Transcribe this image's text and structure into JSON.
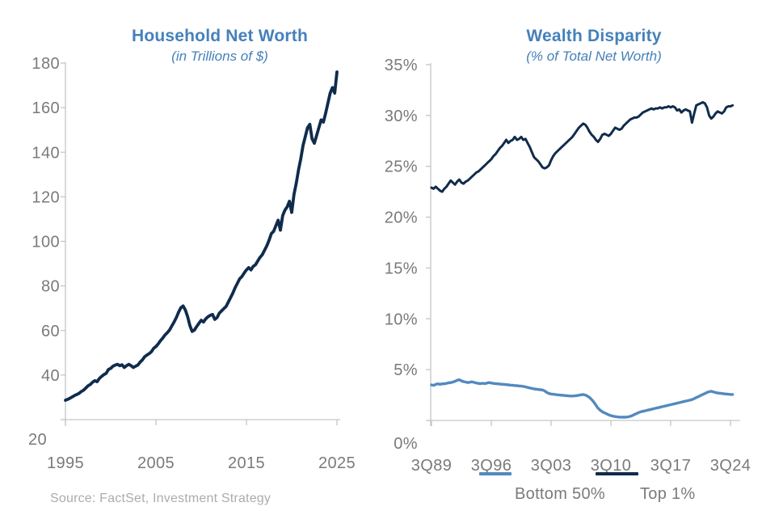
{
  "page": {
    "background": "#ffffff"
  },
  "source_note": "Source: FactSet, Investment Strategy",
  "colors": {
    "title_blue": "#4581BA",
    "navy": "#102C4C",
    "light_blue": "#5289BF",
    "axis_line": "#C3C6C9",
    "tick_label": "#7A7A7C",
    "source_text": "#ACACAE"
  },
  "chart_data": [
    {
      "type": "line",
      "title": "Household Net Worth",
      "subtitle": "(in Trillions of $)",
      "x_start": 1995,
      "x_step": 0.25,
      "x_ticks": [
        1995,
        2005,
        2015,
        2025
      ],
      "x_tick_labels": [
        "1995",
        "2005",
        "2015",
        "2025"
      ],
      "ylim": [
        20,
        180
      ],
      "y_ticks": [
        20,
        40,
        60,
        80,
        100,
        120,
        140,
        160,
        180
      ],
      "y_tick_labels": [
        "20",
        "40",
        "60",
        "80",
        "100",
        "120",
        "140",
        "160",
        "180"
      ],
      "grid": false,
      "legend_position": "none",
      "series": [
        {
          "name": "Household Net Worth",
          "color_key": "navy",
          "values": [
            28.7,
            29.1,
            29.6,
            30.2,
            30.8,
            31.3,
            31.8,
            32.6,
            33.2,
            34.2,
            35.2,
            35.8,
            36.8,
            37.5,
            37.0,
            38.5,
            39.4,
            40.2,
            40.8,
            42.5,
            43.0,
            44.0,
            44.5,
            44.8,
            44.2,
            44.6,
            43.4,
            44.2,
            44.8,
            44.2,
            43.4,
            44.0,
            44.5,
            45.8,
            46.8,
            48.2,
            49.0,
            49.6,
            50.5,
            52.0,
            52.8,
            54.0,
            55.4,
            56.6,
            58.0,
            59.0,
            60.2,
            62.0,
            63.8,
            65.8,
            68.2,
            70.2,
            71.0,
            69.2,
            66.2,
            62.2,
            59.6,
            60.2,
            61.8,
            63.2,
            64.6,
            63.8,
            65.2,
            66.2,
            66.8,
            67.2,
            65.0,
            65.8,
            67.8,
            68.8,
            69.8,
            70.8,
            72.8,
            74.8,
            76.8,
            79.2,
            81.2,
            83.2,
            84.2,
            85.8,
            87.2,
            88.2,
            87.2,
            88.8,
            89.5,
            91.2,
            92.8,
            94.0,
            96.0,
            98.0,
            100.5,
            103.5,
            104.5,
            107.0,
            109.5,
            105.0,
            111.5,
            114.0,
            115.5,
            118.0,
            113.0,
            121.0,
            126.0,
            132.0,
            137.0,
            143.0,
            147.0,
            151.0,
            152.5,
            146.0,
            144.0,
            147.5,
            151.0,
            154.5,
            153.5,
            157.5,
            162.0,
            166.5,
            169.0,
            166.5,
            176.0
          ]
        }
      ]
    },
    {
      "type": "line",
      "title": "Wealth Disparity",
      "subtitle": "(% of Total Net Worth)",
      "x_start": 1989.5,
      "x_step": 0.25,
      "x_ticks": [
        1989.5,
        1996.5,
        2003.5,
        2010.5,
        2017.5,
        2024.5
      ],
      "x_tick_labels": [
        "3Q89",
        "3Q96",
        "3Q03",
        "3Q10",
        "3Q17",
        "3Q24"
      ],
      "ylim": [
        0,
        35
      ],
      "y_ticks": [
        0,
        5,
        10,
        15,
        20,
        25,
        30,
        35
      ],
      "y_tick_labels": [
        "0%",
        "5%",
        "10%",
        "15%",
        "20%",
        "25%",
        "30%",
        "35%"
      ],
      "grid": false,
      "legend_position": "bottom",
      "legend": [
        {
          "label": "Bottom 50%",
          "color_key": "light_blue"
        },
        {
          "label": "Top 1%",
          "color_key": "navy"
        }
      ],
      "series": [
        {
          "name": "Bottom 50%",
          "color_key": "light_blue",
          "values": [
            3.5,
            3.45,
            3.55,
            3.6,
            3.55,
            3.6,
            3.6,
            3.65,
            3.7,
            3.72,
            3.78,
            3.85,
            3.95,
            4.0,
            3.9,
            3.82,
            3.78,
            3.72,
            3.76,
            3.8,
            3.74,
            3.68,
            3.64,
            3.62,
            3.66,
            3.62,
            3.68,
            3.72,
            3.68,
            3.64,
            3.62,
            3.6,
            3.58,
            3.56,
            3.55,
            3.52,
            3.5,
            3.48,
            3.46,
            3.44,
            3.42,
            3.4,
            3.38,
            3.35,
            3.3,
            3.25,
            3.2,
            3.15,
            3.1,
            3.08,
            3.05,
            3.02,
            3.0,
            2.9,
            2.75,
            2.65,
            2.6,
            2.58,
            2.55,
            2.52,
            2.5,
            2.48,
            2.46,
            2.44,
            2.42,
            2.4,
            2.4,
            2.42,
            2.44,
            2.48,
            2.52,
            2.55,
            2.5,
            2.4,
            2.25,
            2.05,
            1.8,
            1.5,
            1.2,
            1.0,
            0.85,
            0.75,
            0.65,
            0.55,
            0.48,
            0.42,
            0.38,
            0.35,
            0.33,
            0.33,
            0.32,
            0.33,
            0.35,
            0.4,
            0.48,
            0.58,
            0.68,
            0.78,
            0.85,
            0.9,
            0.95,
            1.0,
            1.05,
            1.1,
            1.15,
            1.2,
            1.25,
            1.3,
            1.35,
            1.4,
            1.45,
            1.5,
            1.55,
            1.6,
            1.65,
            1.7,
            1.75,
            1.8,
            1.85,
            1.9,
            1.95,
            2.0,
            2.05,
            2.15,
            2.25,
            2.35,
            2.45,
            2.55,
            2.65,
            2.75,
            2.82,
            2.87,
            2.8,
            2.75,
            2.7,
            2.68,
            2.65,
            2.62,
            2.6,
            2.58,
            2.56,
            2.55
          ]
        },
        {
          "name": "Top 1%",
          "color_key": "navy",
          "values": [
            22.9,
            22.8,
            23.0,
            22.8,
            22.6,
            22.5,
            22.8,
            23.0,
            23.3,
            23.6,
            23.4,
            23.2,
            23.5,
            23.7,
            23.4,
            23.3,
            23.5,
            23.6,
            23.8,
            24.0,
            24.2,
            24.4,
            24.5,
            24.7,
            24.9,
            25.1,
            25.3,
            25.5,
            25.7,
            26.0,
            26.2,
            26.5,
            26.8,
            27.0,
            27.3,
            27.6,
            27.3,
            27.5,
            27.6,
            27.9,
            27.6,
            27.7,
            27.9,
            27.6,
            27.7,
            27.3,
            26.9,
            26.4,
            25.9,
            25.7,
            25.5,
            25.2,
            24.9,
            24.8,
            24.9,
            25.1,
            25.6,
            26.0,
            26.3,
            26.5,
            26.7,
            26.9,
            27.1,
            27.3,
            27.5,
            27.7,
            27.9,
            28.2,
            28.5,
            28.8,
            29.0,
            29.2,
            29.1,
            28.8,
            28.4,
            28.1,
            27.9,
            27.6,
            27.4,
            27.7,
            28.1,
            28.2,
            28.1,
            28.0,
            28.2,
            28.5,
            28.8,
            28.7,
            28.6,
            28.7,
            29.0,
            29.2,
            29.4,
            29.6,
            29.7,
            29.8,
            29.8,
            29.9,
            30.1,
            30.3,
            30.4,
            30.5,
            30.6,
            30.7,
            30.6,
            30.7,
            30.7,
            30.8,
            30.7,
            30.8,
            30.8,
            30.9,
            30.8,
            30.9,
            30.8,
            30.5,
            30.6,
            30.3,
            30.5,
            30.6,
            30.5,
            30.4,
            29.3,
            30.2,
            31.0,
            31.1,
            31.2,
            31.3,
            31.2,
            30.8,
            30.0,
            29.7,
            29.9,
            30.2,
            30.4,
            30.3,
            30.2,
            30.4,
            30.8,
            30.9,
            30.9,
            31.0
          ]
        }
      ]
    }
  ]
}
